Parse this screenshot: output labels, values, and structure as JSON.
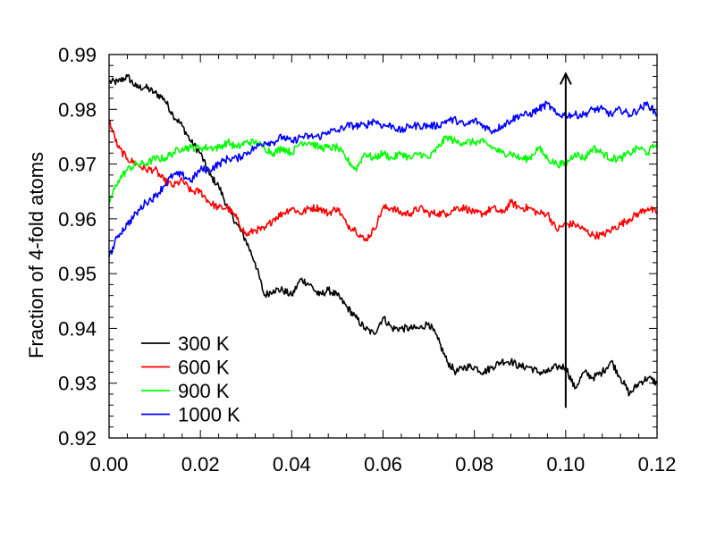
{
  "chart_data": {
    "type": "line",
    "title": "",
    "xlabel": "",
    "ylabel": "Fraction of 4-fold atoms",
    "xlim": [
      0.0,
      0.12
    ],
    "ylim": [
      0.92,
      0.99
    ],
    "xticks": [
      "0.00",
      "0.02",
      "0.04",
      "0.06",
      "0.08",
      "0.10",
      "0.12"
    ],
    "yticks": [
      "0.92",
      "0.93",
      "0.94",
      "0.95",
      "0.96",
      "0.97",
      "0.98",
      "0.99"
    ],
    "grid": false,
    "legend_position": "bottom-left",
    "annotation": {
      "type": "arrow",
      "x": 0.1,
      "y_from": 0.9255,
      "y_to": 0.9865,
      "color": "#000000"
    },
    "series": [
      {
        "name": "300 K",
        "color": "#000000",
        "x": [
          0.0,
          0.002,
          0.004,
          0.006,
          0.008,
          0.01,
          0.012,
          0.014,
          0.016,
          0.018,
          0.02,
          0.022,
          0.024,
          0.026,
          0.028,
          0.03,
          0.032,
          0.034,
          0.036,
          0.038,
          0.04,
          0.042,
          0.044,
          0.046,
          0.048,
          0.05,
          0.052,
          0.054,
          0.056,
          0.058,
          0.06,
          0.062,
          0.064,
          0.066,
          0.068,
          0.07,
          0.072,
          0.074,
          0.076,
          0.078,
          0.08,
          0.082,
          0.084,
          0.086,
          0.088,
          0.09,
          0.092,
          0.094,
          0.096,
          0.098,
          0.1,
          0.102,
          0.104,
          0.106,
          0.108,
          0.11,
          0.112,
          0.114,
          0.116,
          0.118,
          0.12
        ],
        "values": [
          0.985,
          0.985,
          0.986,
          0.984,
          0.984,
          0.983,
          0.982,
          0.979,
          0.977,
          0.974,
          0.972,
          0.968,
          0.966,
          0.962,
          0.959,
          0.956,
          0.952,
          0.946,
          0.947,
          0.947,
          0.946,
          0.949,
          0.948,
          0.946,
          0.947,
          0.946,
          0.944,
          0.942,
          0.94,
          0.939,
          0.942,
          0.94,
          0.94,
          0.94,
          0.94,
          0.941,
          0.938,
          0.934,
          0.932,
          0.933,
          0.933,
          0.932,
          0.933,
          0.934,
          0.934,
          0.933,
          0.933,
          0.932,
          0.932,
          0.933,
          0.933,
          0.929,
          0.932,
          0.931,
          0.932,
          0.934,
          0.931,
          0.928,
          0.93,
          0.931,
          0.93
        ]
      },
      {
        "name": "600 K",
        "color": "#ff0000",
        "x": [
          0.0,
          0.002,
          0.004,
          0.006,
          0.008,
          0.01,
          0.012,
          0.014,
          0.016,
          0.018,
          0.02,
          0.022,
          0.024,
          0.026,
          0.028,
          0.03,
          0.032,
          0.034,
          0.036,
          0.038,
          0.04,
          0.042,
          0.044,
          0.046,
          0.048,
          0.05,
          0.052,
          0.054,
          0.056,
          0.058,
          0.06,
          0.062,
          0.064,
          0.066,
          0.068,
          0.07,
          0.072,
          0.074,
          0.076,
          0.078,
          0.08,
          0.082,
          0.084,
          0.086,
          0.088,
          0.09,
          0.092,
          0.094,
          0.096,
          0.098,
          0.1,
          0.102,
          0.104,
          0.106,
          0.108,
          0.11,
          0.112,
          0.114,
          0.116,
          0.118,
          0.12
        ],
        "values": [
          0.978,
          0.973,
          0.971,
          0.97,
          0.969,
          0.969,
          0.967,
          0.966,
          0.967,
          0.965,
          0.965,
          0.963,
          0.962,
          0.962,
          0.96,
          0.957,
          0.958,
          0.958,
          0.96,
          0.961,
          0.962,
          0.961,
          0.962,
          0.962,
          0.961,
          0.962,
          0.959,
          0.958,
          0.956,
          0.958,
          0.962,
          0.962,
          0.961,
          0.961,
          0.962,
          0.961,
          0.961,
          0.961,
          0.962,
          0.962,
          0.961,
          0.961,
          0.962,
          0.961,
          0.963,
          0.962,
          0.962,
          0.961,
          0.961,
          0.958,
          0.959,
          0.959,
          0.958,
          0.957,
          0.957,
          0.958,
          0.959,
          0.96,
          0.961,
          0.962,
          0.961
        ]
      },
      {
        "name": "900 K",
        "color": "#00ff00",
        "x": [
          0.0,
          0.002,
          0.004,
          0.006,
          0.008,
          0.01,
          0.012,
          0.014,
          0.016,
          0.018,
          0.02,
          0.022,
          0.024,
          0.026,
          0.028,
          0.03,
          0.032,
          0.034,
          0.036,
          0.038,
          0.04,
          0.042,
          0.044,
          0.046,
          0.048,
          0.05,
          0.052,
          0.054,
          0.056,
          0.058,
          0.06,
          0.062,
          0.064,
          0.066,
          0.068,
          0.07,
          0.072,
          0.074,
          0.076,
          0.078,
          0.08,
          0.082,
          0.084,
          0.086,
          0.088,
          0.09,
          0.092,
          0.094,
          0.096,
          0.098,
          0.1,
          0.102,
          0.104,
          0.106,
          0.108,
          0.11,
          0.112,
          0.114,
          0.116,
          0.118,
          0.12
        ],
        "values": [
          0.963,
          0.967,
          0.969,
          0.97,
          0.97,
          0.971,
          0.971,
          0.972,
          0.973,
          0.973,
          0.973,
          0.973,
          0.973,
          0.974,
          0.973,
          0.974,
          0.974,
          0.973,
          0.972,
          0.973,
          0.972,
          0.974,
          0.974,
          0.973,
          0.973,
          0.973,
          0.971,
          0.969,
          0.972,
          0.971,
          0.972,
          0.971,
          0.972,
          0.971,
          0.972,
          0.971,
          0.973,
          0.975,
          0.974,
          0.974,
          0.974,
          0.974,
          0.973,
          0.972,
          0.972,
          0.971,
          0.971,
          0.973,
          0.971,
          0.97,
          0.97,
          0.972,
          0.971,
          0.973,
          0.972,
          0.971,
          0.971,
          0.972,
          0.973,
          0.972,
          0.974
        ]
      },
      {
        "name": "1000 K",
        "color": "#0000ff",
        "x": [
          0.0,
          0.002,
          0.004,
          0.006,
          0.008,
          0.01,
          0.012,
          0.014,
          0.016,
          0.018,
          0.02,
          0.022,
          0.024,
          0.026,
          0.028,
          0.03,
          0.032,
          0.034,
          0.036,
          0.038,
          0.04,
          0.042,
          0.044,
          0.046,
          0.048,
          0.05,
          0.052,
          0.054,
          0.056,
          0.058,
          0.06,
          0.062,
          0.064,
          0.066,
          0.068,
          0.07,
          0.072,
          0.074,
          0.076,
          0.078,
          0.08,
          0.082,
          0.084,
          0.086,
          0.088,
          0.09,
          0.092,
          0.094,
          0.096,
          0.098,
          0.1,
          0.102,
          0.104,
          0.106,
          0.108,
          0.11,
          0.112,
          0.114,
          0.116,
          0.118,
          0.12
        ],
        "values": [
          0.953,
          0.957,
          0.959,
          0.961,
          0.963,
          0.964,
          0.966,
          0.968,
          0.968,
          0.967,
          0.969,
          0.969,
          0.97,
          0.971,
          0.971,
          0.972,
          0.973,
          0.974,
          0.974,
          0.975,
          0.974,
          0.975,
          0.975,
          0.975,
          0.976,
          0.976,
          0.977,
          0.977,
          0.977,
          0.978,
          0.977,
          0.977,
          0.976,
          0.977,
          0.977,
          0.977,
          0.977,
          0.978,
          0.978,
          0.977,
          0.978,
          0.977,
          0.976,
          0.977,
          0.978,
          0.979,
          0.979,
          0.98,
          0.981,
          0.979,
          0.979,
          0.979,
          0.979,
          0.98,
          0.98,
          0.979,
          0.98,
          0.979,
          0.98,
          0.981,
          0.979
        ]
      }
    ]
  }
}
